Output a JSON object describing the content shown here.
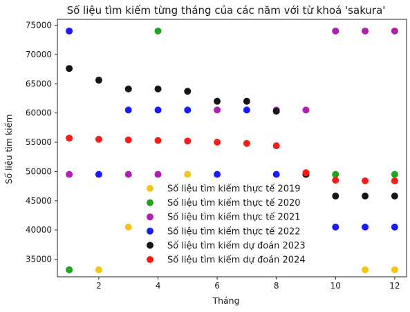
{
  "chart_data": {
    "type": "scatter",
    "title": "Số liệu tìm kiếm từng tháng của các năm với từ khoá 'sakura'",
    "xlabel": "Tháng",
    "ylabel": "Số liệu tìm kiếm",
    "xlim": [
      0.6,
      12.4
    ],
    "ylim": [
      32000,
      76000
    ],
    "xticks": [
      2,
      4,
      6,
      8,
      10,
      12
    ],
    "yticks": [
      35000,
      40000,
      45000,
      50000,
      55000,
      60000,
      65000,
      70000,
      75000
    ],
    "grid": false,
    "legend_position": "lower-center",
    "series": [
      {
        "name": "Số liệu tìm kiếm thực tế 2019",
        "color": "#f5c518",
        "points": [
          [
            1,
            33200
          ],
          [
            2,
            33200
          ],
          [
            3,
            40500
          ],
          [
            4,
            49500
          ],
          [
            5,
            49500
          ],
          [
            11,
            33200
          ],
          [
            12,
            33200
          ]
        ]
      },
      {
        "name": "Số liệu tìm kiếm thực tế 2020",
        "color": "#1fa51f",
        "points": [
          [
            1,
            33200
          ],
          [
            4,
            74000
          ],
          [
            9,
            49500
          ],
          [
            10,
            49500
          ],
          [
            12,
            49500
          ]
        ]
      },
      {
        "name": "Số liệu tìm kiếm thực tế 2021",
        "color": "#b020b0",
        "points": [
          [
            1,
            49500
          ],
          [
            3,
            49500
          ],
          [
            4,
            49500
          ],
          [
            6,
            60500
          ],
          [
            8,
            60500
          ],
          [
            9,
            60500
          ],
          [
            10,
            74000
          ],
          [
            11,
            74000
          ],
          [
            12,
            74000
          ]
        ]
      },
      {
        "name": "Số liệu tìm kiếm thực tế 2022",
        "color": "#1a1aff",
        "points": [
          [
            1,
            74000
          ],
          [
            2,
            49500
          ],
          [
            3,
            60500
          ],
          [
            4,
            60500
          ],
          [
            5,
            60500
          ],
          [
            6,
            49500
          ],
          [
            7,
            60500
          ],
          [
            8,
            49500
          ],
          [
            10,
            40500
          ],
          [
            11,
            40500
          ],
          [
            12,
            40500
          ]
        ]
      },
      {
        "name": "Số liệu tìm kiếm dự đoán 2023",
        "color": "#151515",
        "points": [
          [
            1,
            67600
          ],
          [
            2,
            65600
          ],
          [
            3,
            64100
          ],
          [
            4,
            64100
          ],
          [
            5,
            63700
          ],
          [
            6,
            62000
          ],
          [
            7,
            62000
          ],
          [
            8,
            60300
          ],
          [
            9,
            49500
          ],
          [
            10,
            45800
          ],
          [
            11,
            45800
          ],
          [
            12,
            45800
          ]
        ]
      },
      {
        "name": "Số liệu tìm kiếm dự đoán 2024",
        "color": "#ff1a1a",
        "points": [
          [
            1,
            55700
          ],
          [
            2,
            55500
          ],
          [
            3,
            55400
          ],
          [
            4,
            55300
          ],
          [
            5,
            55200
          ],
          [
            6,
            55000
          ],
          [
            7,
            54800
          ],
          [
            8,
            54400
          ],
          [
            9,
            49800
          ],
          [
            10,
            48500
          ],
          [
            11,
            48400
          ],
          [
            12,
            48400
          ]
        ]
      }
    ]
  }
}
